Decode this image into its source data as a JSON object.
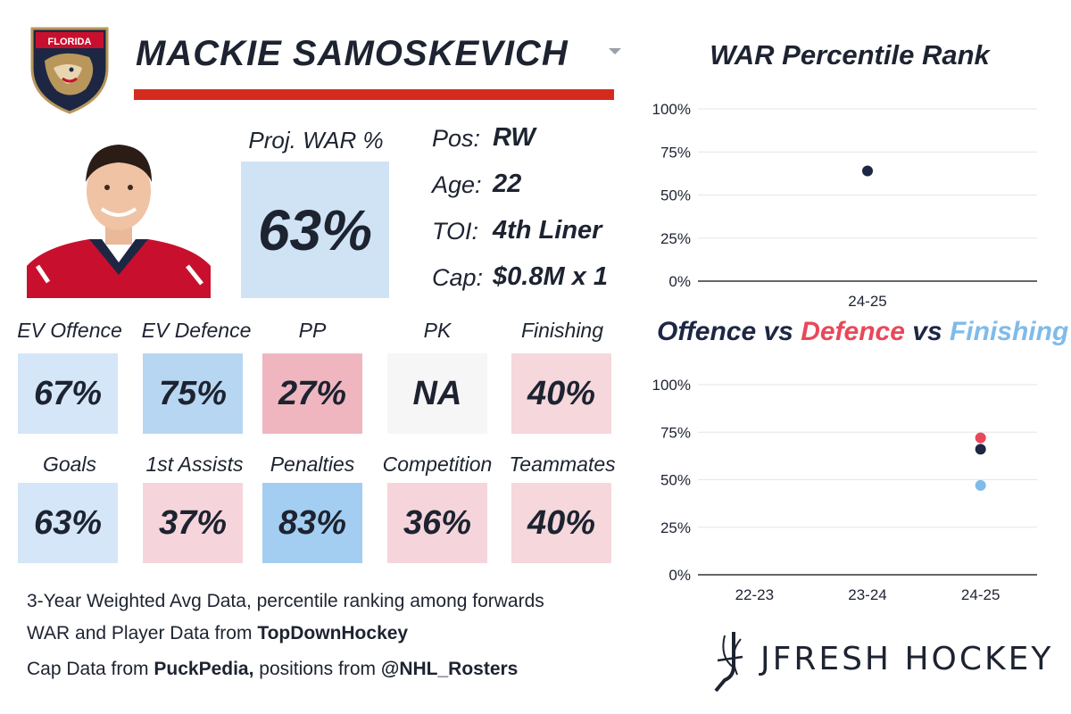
{
  "player": {
    "name": "MACKIE SAMOSKEVICH",
    "team_logo_text": "FLORIDA"
  },
  "proj_war": {
    "label": "Proj. WAR %",
    "value": "63%",
    "color": "#cfe3f5"
  },
  "info": [
    {
      "label": "Pos:",
      "value": "RW"
    },
    {
      "label": "Age:",
      "value": "22"
    },
    {
      "label": "TOI:",
      "value": "4th Liner"
    },
    {
      "label": "Cap:",
      "value": "$0.8M x 1"
    }
  ],
  "stats_row1": [
    {
      "label": "EV Offence",
      "value": "67%",
      "color": "#d4e6f7"
    },
    {
      "label": "EV Defence",
      "value": "75%",
      "color": "#b7d6f2"
    },
    {
      "label": "PP",
      "value": "27%",
      "color": "#f0b6c0"
    },
    {
      "label": "PK",
      "value": "NA",
      "color": "#f6f6f6"
    },
    {
      "label": "Finishing",
      "value": "40%",
      "color": "#f5d7dc"
    }
  ],
  "stats_row2": [
    {
      "label": "Goals",
      "value": "63%",
      "color": "#d4e6f7"
    },
    {
      "label": "1st Assists",
      "value": "37%",
      "color": "#f5d5db"
    },
    {
      "label": "Penalties",
      "value": "83%",
      "color": "#a3cef1"
    },
    {
      "label": "Competition",
      "value": "36%",
      "color": "#f5d5db"
    },
    {
      "label": "Teammates",
      "value": "40%",
      "color": "#f5d7dc"
    }
  ],
  "footer": {
    "line1": "3-Year Weighted Avg Data, percentile ranking among forwards",
    "line2_prefix": "WAR and Player Data from ",
    "line2_source": "TopDownHockey",
    "line3_prefix": "Cap Data from ",
    "line3_source": "PuckPedia,",
    "line3_middle": " positions from ",
    "line3_source2": "@NHL_Rosters"
  },
  "brand": {
    "name": "JFRESH HOCKEY"
  },
  "colors": {
    "offence": "#1d2744",
    "defence": "#e8485a",
    "finishing": "#7fbbe9",
    "accent_red": "#d52b1e"
  },
  "chart_data": [
    {
      "type": "scatter",
      "title": "WAR Percentile Rank",
      "categories": [
        "24-25"
      ],
      "series": [
        {
          "values": [
            64
          ],
          "color": "#1d2744"
        }
      ],
      "yticks": [
        "0%",
        "25%",
        "50%",
        "75%",
        "100%"
      ],
      "ylim": [
        0,
        100
      ],
      "grid": true
    },
    {
      "type": "scatter",
      "title_parts": [
        {
          "text": "Offence",
          "color": "#1d2744"
        },
        {
          "text": " vs ",
          "color": "#1d2744"
        },
        {
          "text": "Defence",
          "color": "#e8485a"
        },
        {
          "text": " vs ",
          "color": "#1d2744"
        },
        {
          "text": "Finishing",
          "color": "#7fbbe9"
        }
      ],
      "categories": [
        "22-23",
        "23-24",
        "24-25"
      ],
      "series": [
        {
          "name": "Defence",
          "values": [
            null,
            null,
            72
          ],
          "color": "#e8485a"
        },
        {
          "name": "Offence",
          "values": [
            null,
            null,
            66
          ],
          "color": "#1d2744"
        },
        {
          "name": "Finishing",
          "values": [
            null,
            null,
            47
          ],
          "color": "#7fbbe9"
        }
      ],
      "yticks": [
        "0%",
        "25%",
        "50%",
        "75%",
        "100%"
      ],
      "ylim": [
        0,
        100
      ],
      "grid": true
    }
  ]
}
